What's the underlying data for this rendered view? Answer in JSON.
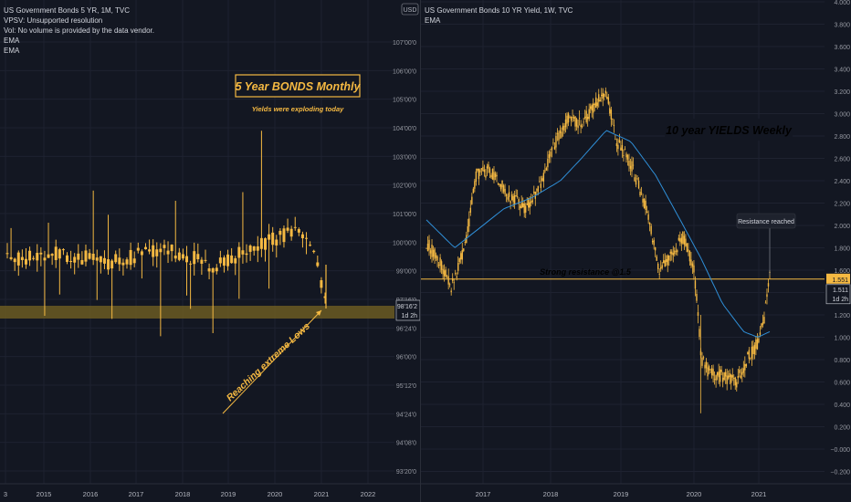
{
  "left_chart": {
    "legend": [
      "US Government Bonds 5 YR, 1M, TVC",
      "VPSV: Unsupported resolution",
      "Vol: No volume is provided by the data vendor.",
      "EMA",
      "EMA"
    ],
    "price_axis": [
      "107'00'0",
      "106'00'0",
      "105'00'0",
      "104'00'0",
      "103'00'0",
      "102'00'0",
      "101'00'0",
      "100'00'0",
      "99'00'0",
      "97'16'0",
      "96'24'0",
      "96'00'0",
      "95'12'0",
      "94'24'0",
      "94'08'0",
      "93'20'0"
    ],
    "time_axis": [
      "3",
      "2015",
      "2016",
      "2017",
      "2018",
      "2019",
      "2020",
      "2021",
      "2022"
    ],
    "last_price": "98'16'2",
    "countdown": "1d 2h",
    "annotations": {
      "title": "5 Year BONDS Monthly",
      "subtitle": "Yields were exploding today",
      "arrow_label": "Reaching extreme Lows"
    },
    "colors": {
      "candle": "#f5b942",
      "highlight_band": "#6b5a22",
      "annotation": "#f5b942",
      "background": "#131722"
    }
  },
  "right_chart": {
    "legend": [
      "US Government Bonds 10 YR Yield, 1W, TVC",
      "EMA"
    ],
    "currency": "USD",
    "price_axis": [
      "4.000",
      "3.800",
      "3.600",
      "3.400",
      "3.200",
      "3.000",
      "2.800",
      "2.600",
      "2.400",
      "2.200",
      "2.000",
      "1.800",
      "1.600",
      "1.400",
      "1.200",
      "1.000",
      "0.800",
      "0.600",
      "0.400",
      "0.200",
      "−0.000",
      "−0.200"
    ],
    "time_axis": [
      "2017",
      "2018",
      "2019",
      "2020",
      "2021"
    ],
    "resistance_price": "1.551",
    "last_price": "1.511",
    "countdown": "1d 2h",
    "annotations": {
      "title": "10 year YIELDS Weekly",
      "resistance_label": "Strong resistance @1.5",
      "callout": "Resistance reached"
    },
    "colors": {
      "candle": "#f5b942",
      "ema": "#2f8fd8",
      "resistance_line": "#f5b942",
      "background": "#131722"
    }
  },
  "chart_data": [
    {
      "type": "line",
      "title": "US Government Bonds 5 YR, 1M, TVC",
      "x": [
        "2014-12",
        "2015-06",
        "2015-12",
        "2016-06",
        "2016-12",
        "2017-06",
        "2017-12",
        "2018-06",
        "2018-12",
        "2019-06",
        "2019-12",
        "2020-06",
        "2020-12",
        "2021-02"
      ],
      "series": [
        {
          "name": "US Government Bonds 5 YR",
          "values": [
            99.9,
            100.1,
            99.8,
            100.3,
            99.5,
            100.0,
            99.7,
            99.4,
            100.1,
            100.5,
            100.8,
            100.6,
            100.2,
            98.5
          ]
        }
      ],
      "ylim": [
        93.6,
        108
      ]
    },
    {
      "type": "line",
      "title": "US Government Bonds 10 YR Yield, 1W, TVC",
      "x": [
        "2016-04",
        "2016-08",
        "2016-12",
        "2017-04",
        "2017-08",
        "2017-12",
        "2018-04",
        "2018-08",
        "2018-11",
        "2019-03",
        "2019-06",
        "2019-09",
        "2019-12",
        "2020-03",
        "2020-06",
        "2020-09",
        "2020-12",
        "2021-02"
      ],
      "series": [
        {
          "name": "US Government Bonds 10 YR Yield",
          "values": [
            1.85,
            1.45,
            2.45,
            2.35,
            2.15,
            2.45,
            2.9,
            2.9,
            3.2,
            2.6,
            2.1,
            1.6,
            1.9,
            0.7,
            0.65,
            0.7,
            0.95,
            1.55
          ]
        },
        {
          "name": "EMA",
          "values": [
            2.0,
            1.85,
            2.0,
            2.15,
            2.25,
            2.35,
            2.6,
            2.75,
            2.85,
            2.75,
            2.55,
            2.3,
            2.0,
            1.6,
            1.2,
            1.05,
            1.0,
            1.05
          ]
        }
      ],
      "ylim": [
        -0.25,
        4.0
      ]
    }
  ]
}
